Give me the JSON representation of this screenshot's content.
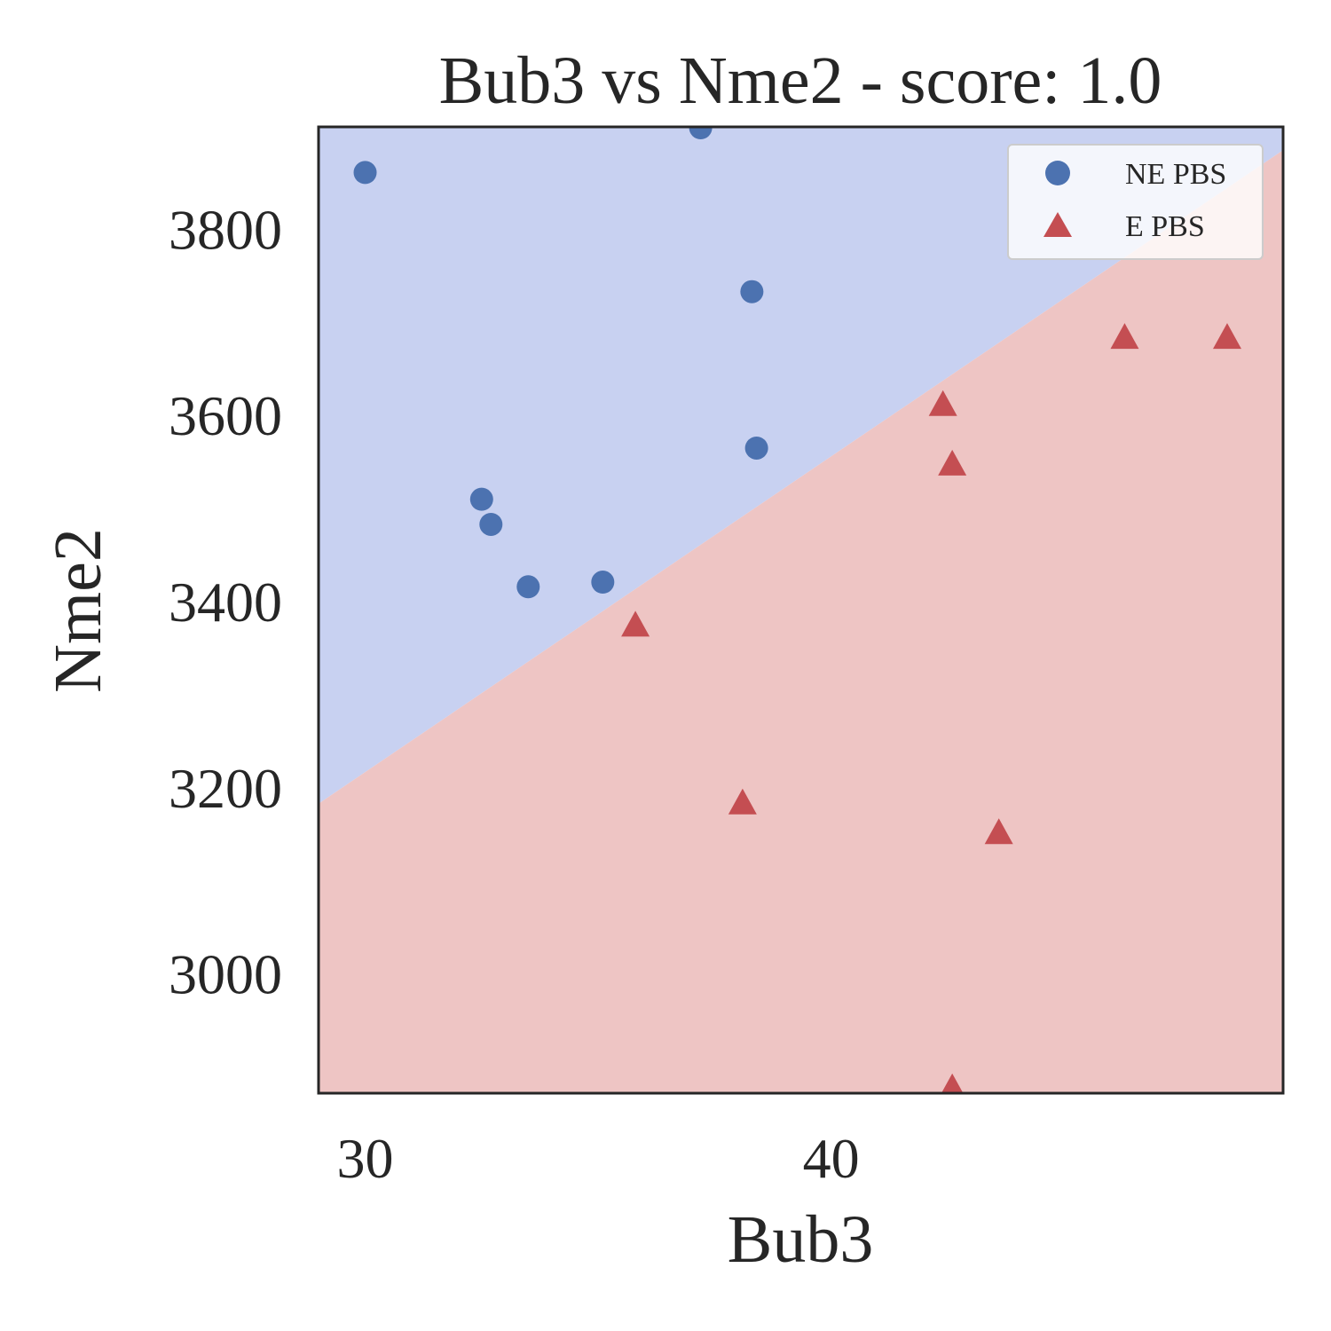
{
  "chart_data": {
    "type": "scatter",
    "title": "Bub3 vs Nme2 - score: 1.0",
    "xlabel": "Bub3",
    "ylabel": "Nme2",
    "xlim": [
      29.0,
      49.7
    ],
    "ylim": [
      2872,
      3910
    ],
    "x_ticks": [
      30,
      40
    ],
    "x_tick_labels": [
      "30",
      "40"
    ],
    "y_ticks": [
      3000,
      3200,
      3400,
      3600,
      3800
    ],
    "y_tick_labels": [
      "3000",
      "3200",
      "3400",
      "3600",
      "3800"
    ],
    "grid": false,
    "legend_position": "top-right",
    "decision_boundary": {
      "points": [
        [
          29.0,
          3183
        ],
        [
          49.7,
          3885
        ]
      ],
      "above_class": "NE PBS",
      "below_class": "E PBS",
      "above_color": "#c8d1f1",
      "below_color": "#eec5c4"
    },
    "series": [
      {
        "name": "NE PBS",
        "marker": "circle",
        "color": "#4c72b0",
        "points": [
          [
            30.0,
            3861
          ],
          [
            37.2,
            3909
          ],
          [
            38.3,
            3733
          ],
          [
            38.4,
            3565
          ],
          [
            32.5,
            3510
          ],
          [
            32.7,
            3483
          ],
          [
            33.5,
            3416
          ],
          [
            35.1,
            3421
          ]
        ]
      },
      {
        "name": "E PBS",
        "marker": "triangle",
        "color": "#c44e52",
        "points": [
          [
            35.8,
            3374
          ],
          [
            38.1,
            3183
          ],
          [
            42.4,
            3611
          ],
          [
            42.6,
            3547
          ],
          [
            43.6,
            3151
          ],
          [
            46.3,
            3683
          ],
          [
            48.5,
            3683
          ],
          [
            42.6,
            2877
          ]
        ]
      }
    ]
  }
}
